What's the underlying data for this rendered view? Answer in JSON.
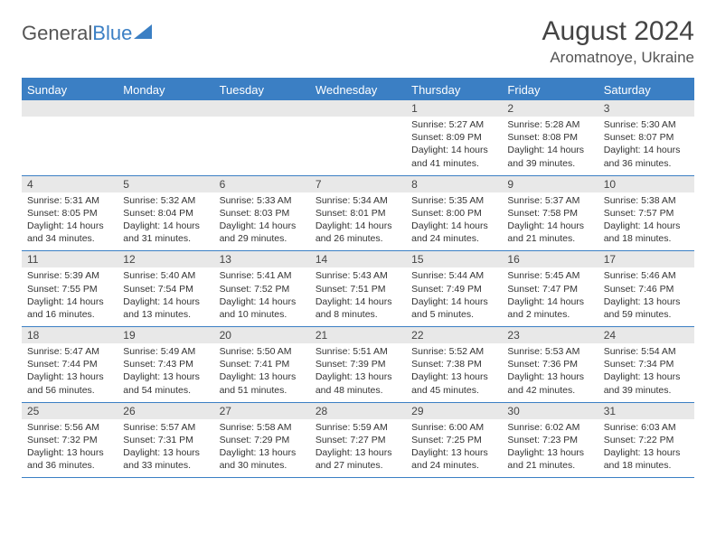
{
  "logo": {
    "word1": "General",
    "word2": "Blue"
  },
  "title": "August 2024",
  "location": "Aromatnoye, Ukraine",
  "colors": {
    "brand": "#3b7fc4",
    "daynum_bg": "#e8e8e8",
    "text": "#333333",
    "header_text": "#444444",
    "bg": "#ffffff"
  },
  "weekdays": [
    "Sunday",
    "Monday",
    "Tuesday",
    "Wednesday",
    "Thursday",
    "Friday",
    "Saturday"
  ],
  "weeks": [
    [
      {
        "n": "",
        "sr": "",
        "ss": "",
        "dl": ""
      },
      {
        "n": "",
        "sr": "",
        "ss": "",
        "dl": ""
      },
      {
        "n": "",
        "sr": "",
        "ss": "",
        "dl": ""
      },
      {
        "n": "",
        "sr": "",
        "ss": "",
        "dl": ""
      },
      {
        "n": "1",
        "sr": "Sunrise: 5:27 AM",
        "ss": "Sunset: 8:09 PM",
        "dl": "Daylight: 14 hours and 41 minutes."
      },
      {
        "n": "2",
        "sr": "Sunrise: 5:28 AM",
        "ss": "Sunset: 8:08 PM",
        "dl": "Daylight: 14 hours and 39 minutes."
      },
      {
        "n": "3",
        "sr": "Sunrise: 5:30 AM",
        "ss": "Sunset: 8:07 PM",
        "dl": "Daylight: 14 hours and 36 minutes."
      }
    ],
    [
      {
        "n": "4",
        "sr": "Sunrise: 5:31 AM",
        "ss": "Sunset: 8:05 PM",
        "dl": "Daylight: 14 hours and 34 minutes."
      },
      {
        "n": "5",
        "sr": "Sunrise: 5:32 AM",
        "ss": "Sunset: 8:04 PM",
        "dl": "Daylight: 14 hours and 31 minutes."
      },
      {
        "n": "6",
        "sr": "Sunrise: 5:33 AM",
        "ss": "Sunset: 8:03 PM",
        "dl": "Daylight: 14 hours and 29 minutes."
      },
      {
        "n": "7",
        "sr": "Sunrise: 5:34 AM",
        "ss": "Sunset: 8:01 PM",
        "dl": "Daylight: 14 hours and 26 minutes."
      },
      {
        "n": "8",
        "sr": "Sunrise: 5:35 AM",
        "ss": "Sunset: 8:00 PM",
        "dl": "Daylight: 14 hours and 24 minutes."
      },
      {
        "n": "9",
        "sr": "Sunrise: 5:37 AM",
        "ss": "Sunset: 7:58 PM",
        "dl": "Daylight: 14 hours and 21 minutes."
      },
      {
        "n": "10",
        "sr": "Sunrise: 5:38 AM",
        "ss": "Sunset: 7:57 PM",
        "dl": "Daylight: 14 hours and 18 minutes."
      }
    ],
    [
      {
        "n": "11",
        "sr": "Sunrise: 5:39 AM",
        "ss": "Sunset: 7:55 PM",
        "dl": "Daylight: 14 hours and 16 minutes."
      },
      {
        "n": "12",
        "sr": "Sunrise: 5:40 AM",
        "ss": "Sunset: 7:54 PM",
        "dl": "Daylight: 14 hours and 13 minutes."
      },
      {
        "n": "13",
        "sr": "Sunrise: 5:41 AM",
        "ss": "Sunset: 7:52 PM",
        "dl": "Daylight: 14 hours and 10 minutes."
      },
      {
        "n": "14",
        "sr": "Sunrise: 5:43 AM",
        "ss": "Sunset: 7:51 PM",
        "dl": "Daylight: 14 hours and 8 minutes."
      },
      {
        "n": "15",
        "sr": "Sunrise: 5:44 AM",
        "ss": "Sunset: 7:49 PM",
        "dl": "Daylight: 14 hours and 5 minutes."
      },
      {
        "n": "16",
        "sr": "Sunrise: 5:45 AM",
        "ss": "Sunset: 7:47 PM",
        "dl": "Daylight: 14 hours and 2 minutes."
      },
      {
        "n": "17",
        "sr": "Sunrise: 5:46 AM",
        "ss": "Sunset: 7:46 PM",
        "dl": "Daylight: 13 hours and 59 minutes."
      }
    ],
    [
      {
        "n": "18",
        "sr": "Sunrise: 5:47 AM",
        "ss": "Sunset: 7:44 PM",
        "dl": "Daylight: 13 hours and 56 minutes."
      },
      {
        "n": "19",
        "sr": "Sunrise: 5:49 AM",
        "ss": "Sunset: 7:43 PM",
        "dl": "Daylight: 13 hours and 54 minutes."
      },
      {
        "n": "20",
        "sr": "Sunrise: 5:50 AM",
        "ss": "Sunset: 7:41 PM",
        "dl": "Daylight: 13 hours and 51 minutes."
      },
      {
        "n": "21",
        "sr": "Sunrise: 5:51 AM",
        "ss": "Sunset: 7:39 PM",
        "dl": "Daylight: 13 hours and 48 minutes."
      },
      {
        "n": "22",
        "sr": "Sunrise: 5:52 AM",
        "ss": "Sunset: 7:38 PM",
        "dl": "Daylight: 13 hours and 45 minutes."
      },
      {
        "n": "23",
        "sr": "Sunrise: 5:53 AM",
        "ss": "Sunset: 7:36 PM",
        "dl": "Daylight: 13 hours and 42 minutes."
      },
      {
        "n": "24",
        "sr": "Sunrise: 5:54 AM",
        "ss": "Sunset: 7:34 PM",
        "dl": "Daylight: 13 hours and 39 minutes."
      }
    ],
    [
      {
        "n": "25",
        "sr": "Sunrise: 5:56 AM",
        "ss": "Sunset: 7:32 PM",
        "dl": "Daylight: 13 hours and 36 minutes."
      },
      {
        "n": "26",
        "sr": "Sunrise: 5:57 AM",
        "ss": "Sunset: 7:31 PM",
        "dl": "Daylight: 13 hours and 33 minutes."
      },
      {
        "n": "27",
        "sr": "Sunrise: 5:58 AM",
        "ss": "Sunset: 7:29 PM",
        "dl": "Daylight: 13 hours and 30 minutes."
      },
      {
        "n": "28",
        "sr": "Sunrise: 5:59 AM",
        "ss": "Sunset: 7:27 PM",
        "dl": "Daylight: 13 hours and 27 minutes."
      },
      {
        "n": "29",
        "sr": "Sunrise: 6:00 AM",
        "ss": "Sunset: 7:25 PM",
        "dl": "Daylight: 13 hours and 24 minutes."
      },
      {
        "n": "30",
        "sr": "Sunrise: 6:02 AM",
        "ss": "Sunset: 7:23 PM",
        "dl": "Daylight: 13 hours and 21 minutes."
      },
      {
        "n": "31",
        "sr": "Sunrise: 6:03 AM",
        "ss": "Sunset: 7:22 PM",
        "dl": "Daylight: 13 hours and 18 minutes."
      }
    ]
  ]
}
